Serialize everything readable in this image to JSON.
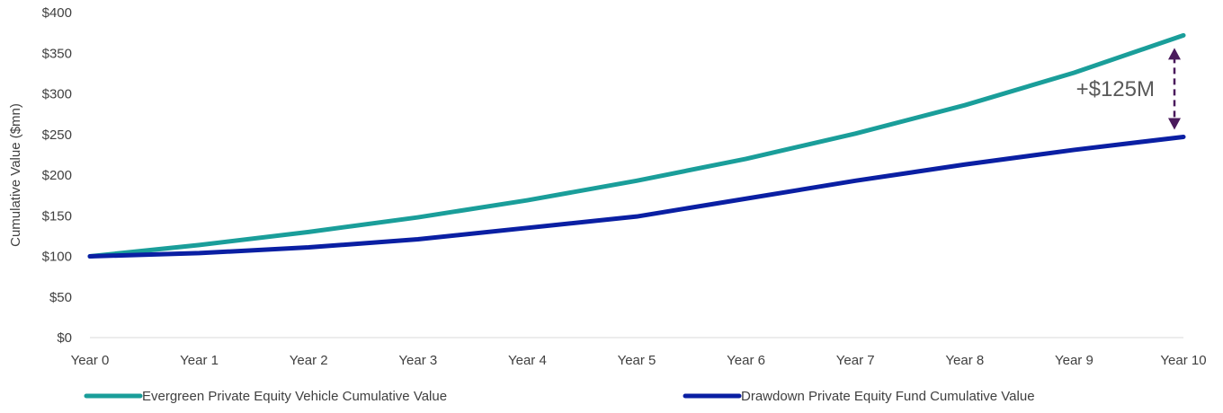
{
  "chart_data": {
    "type": "line",
    "title": "",
    "xlabel": "",
    "ylabel": "Cumulative Value ($mn)",
    "categories": [
      "Year 0",
      "Year 1",
      "Year 2",
      "Year 3",
      "Year 4",
      "Year 5",
      "Year 6",
      "Year 7",
      "Year 8",
      "Year 9",
      "Year 10"
    ],
    "ylim": [
      0,
      400
    ],
    "yticks": [
      0,
      50,
      100,
      150,
      200,
      250,
      300,
      350,
      400
    ],
    "ytick_labels": [
      "$0",
      "$50",
      "$100",
      "$150",
      "$200",
      "$250",
      "$300",
      "$350",
      "$400"
    ],
    "grid": false,
    "legend_position": "bottom",
    "series": [
      {
        "name": "Evergreen Private Equity Vehicle Cumulative Value",
        "color": "#1a9e9a",
        "values": [
          100,
          114,
          130,
          148,
          169,
          193,
          220,
          251,
          286,
          326,
          372
        ]
      },
      {
        "name": "Drawdown Private Equity Fund Cumulative Value",
        "color": "#0a1fa3",
        "values": [
          100,
          104,
          111,
          121,
          135,
          149,
          171,
          193,
          213,
          231,
          247
        ]
      }
    ],
    "annotations": [
      {
        "text": "+$125M",
        "x": "Year 10",
        "y_from": 247,
        "y_to": 372,
        "color": "#4a1a5c"
      }
    ]
  }
}
